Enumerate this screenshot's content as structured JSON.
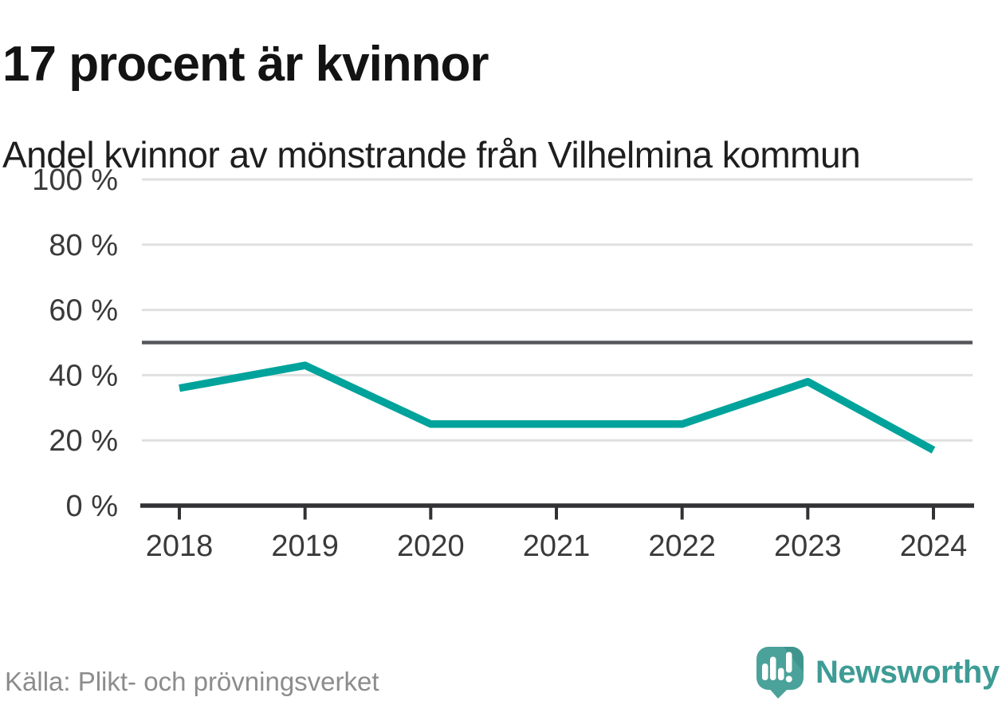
{
  "header": {
    "title": "17 procent är kvinnor",
    "subtitle": "Andel kvinnor av mönstrande från Vilhelmina kommun"
  },
  "chart_data": {
    "type": "line",
    "categories": [
      "2018",
      "2019",
      "2020",
      "2021",
      "2022",
      "2023",
      "2024"
    ],
    "series": [
      {
        "name": "Andel kvinnor av mönstrande",
        "values": [
          36,
          43,
          25,
          25,
          25,
          38,
          17
        ]
      }
    ],
    "unit": "%",
    "ylim": [
      0,
      100
    ],
    "yticks": [
      0,
      20,
      40,
      60,
      80,
      100
    ],
    "ytick_suffix": " %",
    "reference_line": 50,
    "grid": true,
    "legend": "none",
    "title": "17 procent är kvinnor",
    "xlabel": "",
    "ylabel": ""
  },
  "footer": {
    "source": "Källa: Plikt- och prövningsverket",
    "brand": "Newsworthy"
  },
  "icons": {
    "logo": "newsworthy-speech-bubble-bar-chart-icon"
  },
  "colors": {
    "line": "#00a39b",
    "grid": "#e0e0e0",
    "reference_line": "#55565b",
    "axis": "#323234",
    "tick_label": "#3a3a3a",
    "title": "#131313",
    "subtitle": "#1e1e1e",
    "source": "#8c8c8c",
    "brand_teal": "#3d9c95",
    "logo_bubble": "#4ba29b",
    "logo_bubble_shade": "#3f958e"
  }
}
